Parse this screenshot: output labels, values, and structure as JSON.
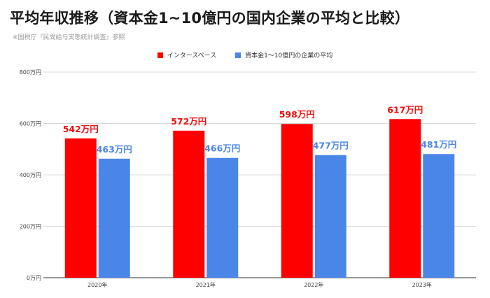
{
  "title": "平均年収推移（資本金1~10億円の国内企業の平均と比較）",
  "source": "※国税庁『民間給与実態統計調査』参照",
  "chart_data": {
    "type": "bar",
    "categories": [
      "2020年",
      "2021年",
      "2022年",
      "2023年"
    ],
    "series": [
      {
        "name": "インタースペース",
        "color": "#ff0000",
        "label_color": "#ee1111",
        "values": [
          542,
          572,
          598,
          617
        ],
        "labels": [
          "542万円",
          "572万円",
          "598万円",
          "617万円"
        ]
      },
      {
        "name": "資本金1～10億円の企業の平均",
        "color": "#4a86e8",
        "label_color": "#4a86e8",
        "values": [
          463,
          466,
          477,
          481
        ],
        "labels": [
          "463万円",
          "466万円",
          "477万円",
          "481万円"
        ]
      }
    ],
    "yticks": [
      0,
      200,
      400,
      600,
      800
    ],
    "ytick_labels": [
      "0万円",
      "200万円",
      "400万円",
      "600万円",
      "800万円"
    ],
    "ylim": [
      0,
      800
    ],
    "grid": true,
    "legend_position": "top-center"
  }
}
